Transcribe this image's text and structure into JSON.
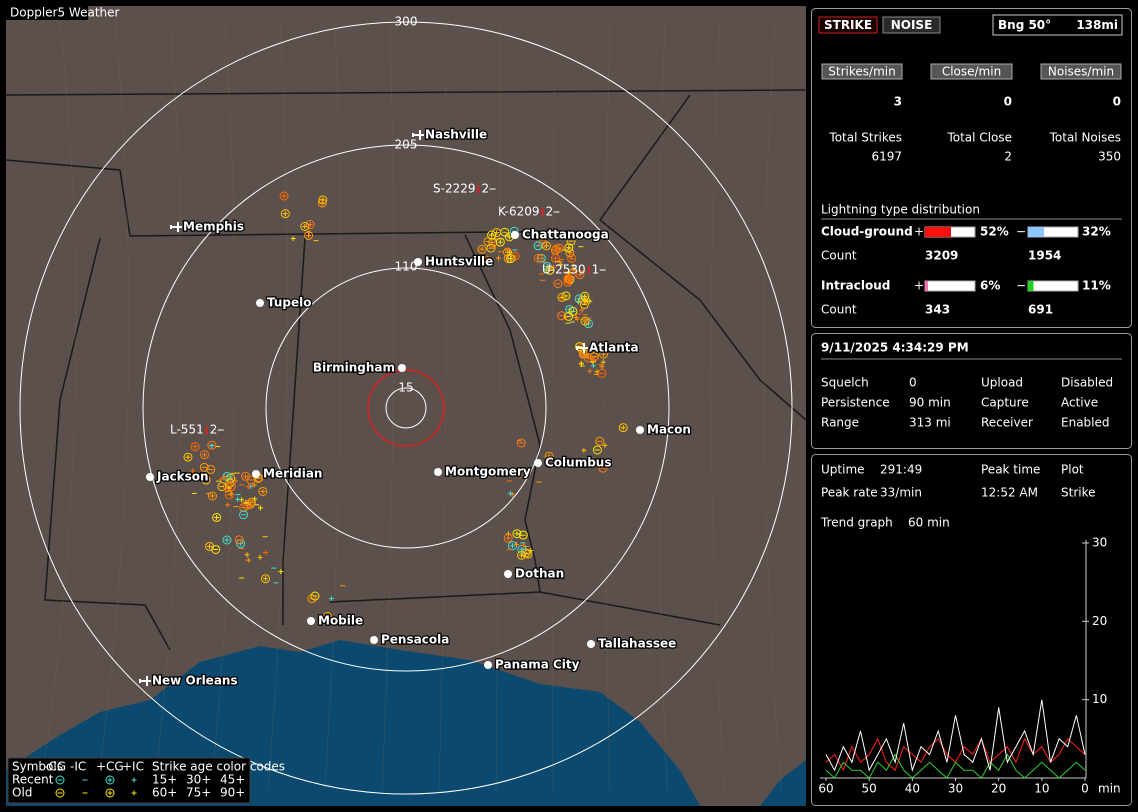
{
  "header": {
    "title": "Doppler5 Weather"
  },
  "map": {
    "range_labels": [
      "300",
      "205",
      "110",
      "15"
    ],
    "cities": [
      "Nashville",
      "Memphis",
      "Chattanooga",
      "Huntsville",
      "Tupelo",
      "Birmingham",
      "Atlanta",
      "Macon",
      "Columbus",
      "Montgomery",
      "Jackson",
      "Meridian",
      "Dothan",
      "Mobile",
      "Pensacola",
      "Tallahassee",
      "Panama City",
      "New Orleans"
    ],
    "storms": [
      {
        "id": "S-2229",
        "count": "2"
      },
      {
        "id": "K-6209",
        "count": "2"
      },
      {
        "id": "U-2530",
        "count": "1"
      },
      {
        "id": "L-551",
        "count": "2"
      }
    ],
    "legend": {
      "symbols_title": "Symbols",
      "symbols": [
        "-CG",
        "-IC",
        "+CG",
        "+IC"
      ],
      "age_title": "Strike age color codes",
      "rows": [
        "Recent",
        "Old"
      ],
      "recent_ages": [
        "15+",
        "30+",
        "45+"
      ],
      "old_ages": [
        "60+",
        "75+",
        "90+"
      ]
    }
  },
  "panel": {
    "modes": [
      "STRIKE",
      "NOISE"
    ],
    "bearing": "Bng 50°",
    "distance": "138mi",
    "rates": [
      {
        "label": "Strikes/min",
        "value": 3
      },
      {
        "label": "Close/min",
        "value": 0
      },
      {
        "label": "Noises/min",
        "value": 0
      }
    ],
    "totals": [
      {
        "label": "Total Strikes",
        "value": 6197
      },
      {
        "label": "Total Close",
        "value": 2
      },
      {
        "label": "Total Noises",
        "value": 350
      }
    ],
    "distribution": {
      "title": "Lightning type distribution",
      "count_label": "Count",
      "types": [
        {
          "name": "Cloud-ground",
          "positive": {
            "sign": "+",
            "pct": 52,
            "label": "52%",
            "count": 3209
          },
          "negative": {
            "sign": "−",
            "pct": 32,
            "label": "32%",
            "count": 1954
          }
        },
        {
          "name": "Intracloud",
          "positive": {
            "sign": "+",
            "pct": 6,
            "label": "6%",
            "count": 343
          },
          "negative": {
            "sign": "−",
            "pct": 11,
            "label": "11%",
            "count": 691
          }
        }
      ]
    },
    "datetime": "9/11/2025 4:34:29 PM",
    "settings": [
      {
        "label": "Squelch",
        "value": "0"
      },
      {
        "label": "Persistence",
        "value": "90 min"
      },
      {
        "label": "Range",
        "value": "313 mi"
      }
    ],
    "status": [
      {
        "label": "Upload",
        "value": "Disabled"
      },
      {
        "label": "Capture",
        "value": "Active"
      },
      {
        "label": "Receiver",
        "value": "Enabled"
      }
    ],
    "stats": [
      {
        "label": "Uptime",
        "value": "291:49"
      },
      {
        "label": "Peak rate",
        "value": "33/min"
      },
      {
        "label": "Peak time",
        "value": "12:52 AM"
      },
      {
        "label": "Plot",
        "value": "Strike"
      }
    ],
    "trend": {
      "label": "Trend graph",
      "span": "60 min",
      "ylim": [
        0,
        30
      ],
      "yticks": [
        10,
        20,
        30
      ],
      "xlim": [
        60,
        0
      ],
      "xticks": [
        60,
        50,
        40,
        30,
        20,
        10,
        0
      ],
      "x_unit": "min",
      "series": [
        {
          "color": "#ff2020",
          "values": [
            2,
            3,
            1,
            4,
            2,
            3,
            5,
            2,
            1,
            4,
            3,
            2,
            4,
            5,
            3,
            2,
            4,
            3,
            5,
            2,
            3,
            4,
            2,
            5,
            3,
            4,
            2,
            3,
            5,
            4,
            3
          ]
        },
        {
          "color": "#30d030",
          "values": [
            1,
            0,
            2,
            1,
            1,
            0,
            2,
            1,
            3,
            1,
            0,
            1,
            2,
            1,
            0,
            2,
            1,
            1,
            0,
            2,
            1,
            3,
            1,
            0,
            1,
            2,
            1,
            0,
            1,
            2,
            1
          ]
        },
        {
          "color": "#ffffff",
          "values": [
            3,
            1,
            4,
            2,
            6,
            1,
            3,
            5,
            2,
            7,
            1,
            4,
            3,
            6,
            2,
            8,
            3,
            2,
            5,
            1,
            9,
            2,
            4,
            6,
            3,
            10,
            2,
            5,
            4,
            8,
            3
          ]
        }
      ]
    }
  }
}
